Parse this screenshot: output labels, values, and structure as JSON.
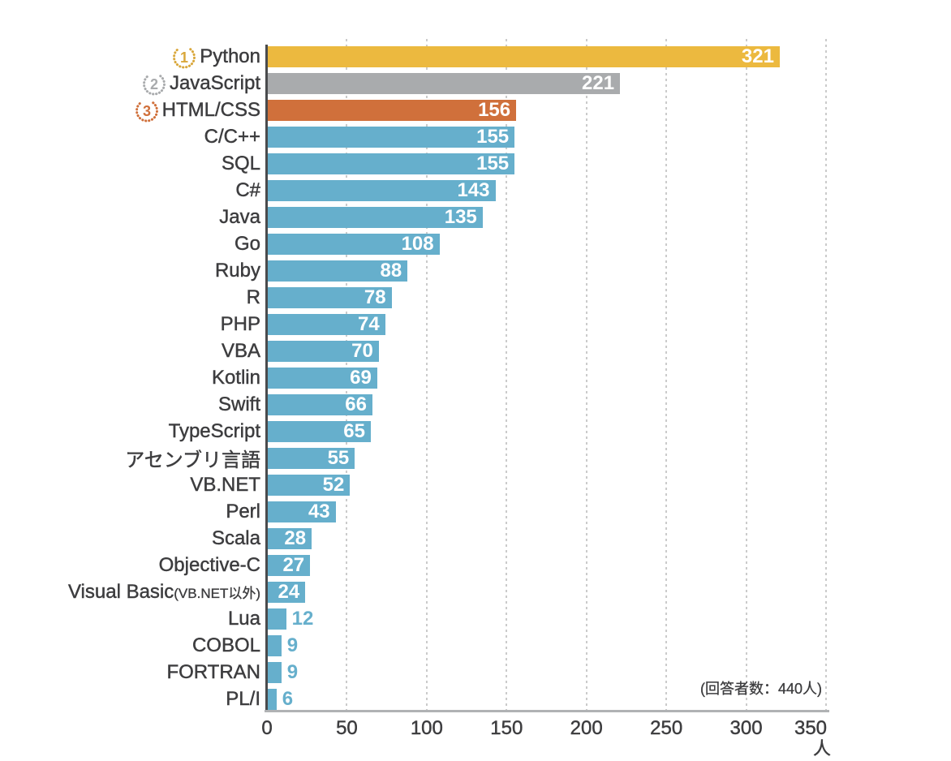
{
  "chart_data": {
    "type": "bar",
    "orientation": "horizontal",
    "title": "",
    "xlabel": "人",
    "xlim": [
      0,
      350
    ],
    "xticks": [
      0,
      50,
      100,
      150,
      200,
      250,
      300,
      350
    ],
    "grid": "vertical-dashed",
    "annotation": "(回答者数：440人)",
    "default_bar_color": "#66afcc",
    "categories": [
      {
        "label": "Python",
        "suffix": "",
        "value": 321,
        "color": "#ecb93f",
        "rank": "1",
        "rank_color": "#d9a73b"
      },
      {
        "label": "JavaScript",
        "suffix": "",
        "value": 221,
        "color": "#a9abad",
        "rank": "2",
        "rank_color": "#a9abad"
      },
      {
        "label": "HTML/CSS",
        "suffix": "",
        "value": 156,
        "color": "#d0703b",
        "rank": "3",
        "rank_color": "#d0703b"
      },
      {
        "label": "C/C++",
        "suffix": "",
        "value": 155,
        "color": "#66afcc",
        "rank": "",
        "rank_color": ""
      },
      {
        "label": "SQL",
        "suffix": "",
        "value": 155,
        "color": "#66afcc",
        "rank": "",
        "rank_color": ""
      },
      {
        "label": "C#",
        "suffix": "",
        "value": 143,
        "color": "#66afcc",
        "rank": "",
        "rank_color": ""
      },
      {
        "label": "Java",
        "suffix": "",
        "value": 135,
        "color": "#66afcc",
        "rank": "",
        "rank_color": ""
      },
      {
        "label": "Go",
        "suffix": "",
        "value": 108,
        "color": "#66afcc",
        "rank": "",
        "rank_color": ""
      },
      {
        "label": "Ruby",
        "suffix": "",
        "value": 88,
        "color": "#66afcc",
        "rank": "",
        "rank_color": ""
      },
      {
        "label": "R",
        "suffix": "",
        "value": 78,
        "color": "#66afcc",
        "rank": "",
        "rank_color": ""
      },
      {
        "label": "PHP",
        "suffix": "",
        "value": 74,
        "color": "#66afcc",
        "rank": "",
        "rank_color": ""
      },
      {
        "label": "VBA",
        "suffix": "",
        "value": 70,
        "color": "#66afcc",
        "rank": "",
        "rank_color": ""
      },
      {
        "label": "Kotlin",
        "suffix": "",
        "value": 69,
        "color": "#66afcc",
        "rank": "",
        "rank_color": ""
      },
      {
        "label": "Swift",
        "suffix": "",
        "value": 66,
        "color": "#66afcc",
        "rank": "",
        "rank_color": ""
      },
      {
        "label": "TypeScript",
        "suffix": "",
        "value": 65,
        "color": "#66afcc",
        "rank": "",
        "rank_color": ""
      },
      {
        "label": "アセンブリ言語",
        "suffix": "",
        "value": 55,
        "color": "#66afcc",
        "rank": "",
        "rank_color": ""
      },
      {
        "label": "VB.NET",
        "suffix": "",
        "value": 52,
        "color": "#66afcc",
        "rank": "",
        "rank_color": ""
      },
      {
        "label": "Perl",
        "suffix": "",
        "value": 43,
        "color": "#66afcc",
        "rank": "",
        "rank_color": ""
      },
      {
        "label": "Scala",
        "suffix": "",
        "value": 28,
        "color": "#66afcc",
        "rank": "",
        "rank_color": ""
      },
      {
        "label": "Objective-C",
        "suffix": "",
        "value": 27,
        "color": "#66afcc",
        "rank": "",
        "rank_color": ""
      },
      {
        "label": "Visual Basic",
        "suffix": "(VB.NET以外)",
        "value": 24,
        "color": "#66afcc",
        "rank": "",
        "rank_color": ""
      },
      {
        "label": "Lua",
        "suffix": "",
        "value": 12,
        "color": "#66afcc",
        "rank": "",
        "rank_color": ""
      },
      {
        "label": "COBOL",
        "suffix": "",
        "value": 9,
        "color": "#66afcc",
        "rank": "",
        "rank_color": ""
      },
      {
        "label": "FORTRAN",
        "suffix": "",
        "value": 9,
        "color": "#66afcc",
        "rank": "",
        "rank_color": ""
      },
      {
        "label": "PL/I",
        "suffix": "",
        "value": 6,
        "color": "#66afcc",
        "rank": "",
        "rank_color": ""
      }
    ],
    "value_label_inside_min": 20
  }
}
